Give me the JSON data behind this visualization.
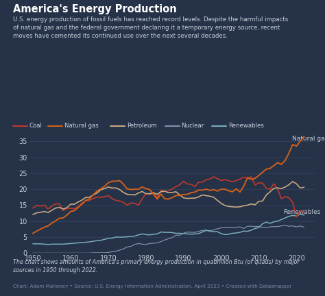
{
  "title": "America's Energy Production",
  "subtitle": "U.S. energy production of fossil fuels has reached record levels. Despite the harmful impacts\nof natural gas and the federal government declaring it a temporary energy source, recent\nmoves have cemented its continued use over the next several decades.",
  "footnote": "The chart shows amounts of America's primary energy production in quadrillion Btu (or quads) by major\nsources in 1950 through 2022.",
  "credit": "Chart: Adam Mahoney • Source: U.S. Energy Information Administration, April 2023 • Created with Datawrapper",
  "bg_color": "#263248",
  "text_color": "#c8d0dc",
  "title_color": "#ffffff",
  "grid_color": "#35465e",
  "years": [
    1950,
    1951,
    1952,
    1953,
    1954,
    1955,
    1956,
    1957,
    1958,
    1959,
    1960,
    1961,
    1962,
    1963,
    1964,
    1965,
    1966,
    1967,
    1968,
    1969,
    1970,
    1971,
    1972,
    1973,
    1974,
    1975,
    1976,
    1977,
    1978,
    1979,
    1980,
    1981,
    1982,
    1983,
    1984,
    1985,
    1986,
    1987,
    1988,
    1989,
    1990,
    1991,
    1992,
    1993,
    1994,
    1995,
    1996,
    1997,
    1998,
    1999,
    2000,
    2001,
    2002,
    2003,
    2004,
    2005,
    2006,
    2007,
    2008,
    2009,
    2010,
    2011,
    2012,
    2013,
    2014,
    2015,
    2016,
    2017,
    2018,
    2019,
    2020,
    2021,
    2022
  ],
  "coal": [
    14.1,
    14.9,
    14.7,
    15.0,
    13.8,
    14.7,
    15.4,
    15.4,
    13.3,
    14.0,
    14.0,
    13.9,
    14.5,
    15.7,
    16.4,
    16.5,
    17.1,
    17.5,
    17.5,
    17.6,
    18.0,
    17.1,
    16.5,
    16.3,
    15.9,
    15.0,
    15.7,
    15.6,
    15.0,
    17.0,
    18.6,
    18.4,
    18.6,
    17.4,
    19.7,
    19.3,
    19.5,
    20.1,
    20.8,
    21.4,
    22.5,
    21.6,
    21.6,
    20.8,
    22.2,
    22.2,
    23.0,
    23.2,
    23.9,
    23.3,
    22.7,
    23.0,
    22.7,
    22.3,
    22.7,
    23.2,
    23.8,
    23.5,
    23.9,
    21.3,
    22.0,
    21.9,
    20.3,
    20.0,
    21.7,
    20.1,
    17.0,
    17.7,
    17.3,
    15.9,
    11.3,
    13.2,
    12.6
  ],
  "natural_gas": [
    6.2,
    6.9,
    7.5,
    8.1,
    8.5,
    9.4,
    10.1,
    10.9,
    11.0,
    11.9,
    13.0,
    13.3,
    14.3,
    15.3,
    16.5,
    16.9,
    18.3,
    19.4,
    20.1,
    20.9,
    22.0,
    22.5,
    22.5,
    22.7,
    21.6,
    20.1,
    19.9,
    20.0,
    20.0,
    20.7,
    20.2,
    19.9,
    18.5,
    16.9,
    18.5,
    17.0,
    16.9,
    17.4,
    18.0,
    18.1,
    18.3,
    18.4,
    18.9,
    19.1,
    19.7,
    19.7,
    20.0,
    19.6,
    19.9,
    19.4,
    20.0,
    20.0,
    19.5,
    19.2,
    20.1,
    19.1,
    21.0,
    23.6,
    23.1,
    23.4,
    24.3,
    25.3,
    26.3,
    26.5,
    27.4,
    28.3,
    27.8,
    29.0,
    31.3,
    34.0,
    33.5,
    35.0,
    36.5
  ],
  "petroleum": [
    12.1,
    12.6,
    12.8,
    13.0,
    12.7,
    13.4,
    14.1,
    14.3,
    13.8,
    14.2,
    15.3,
    15.3,
    16.0,
    16.6,
    17.4,
    17.5,
    18.2,
    18.8,
    19.8,
    20.2,
    20.7,
    20.4,
    20.4,
    19.9,
    19.0,
    18.4,
    18.3,
    18.2,
    18.8,
    19.3,
    18.6,
    18.6,
    18.9,
    18.4,
    19.2,
    19.4,
    18.9,
    19.0,
    19.2,
    18.2,
    17.3,
    17.1,
    17.2,
    17.2,
    17.6,
    18.2,
    18.0,
    17.8,
    17.5,
    16.5,
    15.6,
    14.9,
    14.6,
    14.5,
    14.4,
    14.5,
    14.8,
    15.0,
    15.4,
    15.1,
    16.2,
    16.3,
    18.2,
    19.2,
    20.3,
    20.4,
    20.2,
    20.7,
    21.4,
    22.4,
    21.7,
    20.4,
    20.6
  ],
  "nuclear": [
    0.0,
    0.0,
    0.0,
    0.0,
    0.0,
    0.0,
    0.0,
    0.0,
    0.0,
    0.0,
    0.0,
    0.0,
    0.0,
    0.0,
    0.0,
    0.0,
    0.1,
    0.1,
    0.1,
    0.1,
    0.2,
    0.4,
    0.6,
    0.9,
    1.3,
    1.9,
    2.1,
    2.7,
    3.0,
    2.8,
    2.7,
    3.0,
    3.1,
    3.2,
    3.6,
    4.1,
    4.5,
    4.9,
    5.6,
    5.6,
    6.2,
    6.6,
    6.5,
    6.5,
    6.8,
    7.1,
    7.2,
    6.7,
    7.3,
    7.6,
    7.9,
    8.0,
    8.1,
    7.9,
    8.1,
    8.2,
    7.7,
    8.4,
    8.4,
    8.3,
    8.4,
    8.0,
    8.0,
    8.2,
    8.3,
    8.3,
    8.5,
    8.7,
    8.4,
    8.5,
    8.2,
    8.5,
    8.1
  ],
  "renewables": [
    2.9,
    2.9,
    2.9,
    2.8,
    2.7,
    2.8,
    2.8,
    2.8,
    2.8,
    2.9,
    3.0,
    3.1,
    3.2,
    3.3,
    3.4,
    3.5,
    3.7,
    3.9,
    4.0,
    4.3,
    4.6,
    4.7,
    5.0,
    5.0,
    5.0,
    5.1,
    5.2,
    5.3,
    5.7,
    6.0,
    5.8,
    5.7,
    5.9,
    6.0,
    6.6,
    6.5,
    6.5,
    6.4,
    6.2,
    6.2,
    6.1,
    6.0,
    5.9,
    6.0,
    6.1,
    6.6,
    7.1,
    7.0,
    6.7,
    6.7,
    6.1,
    5.8,
    5.9,
    6.2,
    6.3,
    6.5,
    6.9,
    6.8,
    7.2,
    7.7,
    8.0,
    9.2,
    9.7,
    9.3,
    9.8,
    10.0,
    10.5,
    11.0,
    11.5,
    11.8,
    11.6,
    12.2,
    11.9
  ],
  "coal_color": "#c0392b",
  "natural_gas_color": "#d2601a",
  "petroleum_color": "#c8a882",
  "nuclear_color": "#8090a8",
  "renewables_color": "#7aacb8",
  "ylim": [
    0,
    38
  ],
  "yticks": [
    0,
    5,
    10,
    15,
    20,
    25,
    30,
    35
  ],
  "xlim": [
    1949,
    2025
  ],
  "xticks": [
    1950,
    1960,
    1970,
    1980,
    1990,
    2000,
    2010,
    2020
  ]
}
